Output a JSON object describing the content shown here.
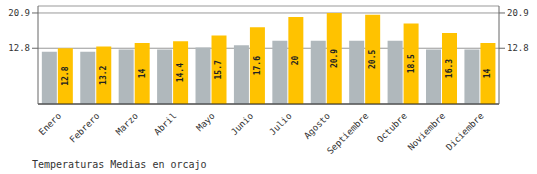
{
  "chart_data": {
    "type": "bar",
    "title": "Temperaturas Medias en orcajo",
    "categories": [
      "Enero",
      "Febrero",
      "Marzo",
      "Abril",
      "Mayo",
      "Junio",
      "Julio",
      "Agosto",
      "Septiembre",
      "Octubre",
      "Noviembre",
      "Diciembre"
    ],
    "series": [
      {
        "color": "#B0B8BC",
        "values": [
          12.0,
          12.0,
          12.5,
          12.5,
          13.0,
          13.5,
          14.5,
          14.5,
          14.5,
          14.5,
          12.5,
          12.5
        ]
      },
      {
        "color": "#FFC200",
        "values": [
          12.8,
          13.2,
          14.0,
          14.4,
          15.7,
          17.6,
          20.0,
          20.9,
          20.5,
          18.5,
          16.3,
          14.0
        ],
        "data_labels": true
      }
    ],
    "ylim": [
      0,
      22.5
    ],
    "yticks": [
      12.8,
      20.9
    ],
    "grid": true
  }
}
